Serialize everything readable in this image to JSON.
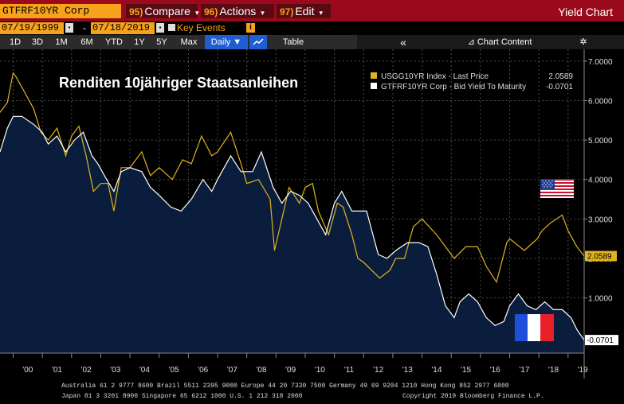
{
  "header": {
    "ticker": "GTFRF10YR Corp",
    "menus": [
      {
        "num": "95)",
        "label": "Compare",
        "caret": "▾"
      },
      {
        "num": "96)",
        "label": "Actions",
        "caret": "▾"
      },
      {
        "num": "97)",
        "label": "Edit",
        "caret": "▾"
      }
    ],
    "app_title": "Yield Chart"
  },
  "dates": {
    "start": "07/19/1999",
    "separator": "-",
    "end": "07/18/2019",
    "key_events_label": "Key Events",
    "info_glyph": "i"
  },
  "toolbar": {
    "periods": [
      "1D",
      "3D",
      "1M",
      "6M",
      "YTD",
      "1Y",
      "5Y",
      "Max"
    ],
    "frequency": "Daily ▼",
    "table_label": "Table",
    "collapse_glyph": "«",
    "chart_content_label": "Chart Content",
    "settings_glyph": "✲",
    "colors": {
      "active": "#1f5ed2"
    }
  },
  "chart_data": {
    "type": "line",
    "title": "Renditen 10jähriger Staatsanleihen",
    "legend_placement": "top-right",
    "xlabel": "",
    "ylabel": "",
    "x_ticks": [
      "'00",
      "'01",
      "'02",
      "'03",
      "'04",
      "'05",
      "'06",
      "'07",
      "'08",
      "'09",
      "'10",
      "'11",
      "'12",
      "'13",
      "'14",
      "'15",
      "'16",
      "'17",
      "'18",
      "'19"
    ],
    "y_ticks": [
      "7.0000",
      "6.0000",
      "5.0000",
      "4.0000",
      "3.0000",
      "2.0000",
      "1.0000"
    ],
    "ylim": [
      -0.4,
      7.3
    ],
    "xlim": [
      1999.55,
      2019.55
    ],
    "grid": true,
    "series": [
      {
        "name": "USGG10YR Index - Last Price",
        "last_value": "2.0589",
        "color": "#e0b41e",
        "x": [
          1999.55,
          1999.8,
          2000.0,
          2000.1,
          2000.4,
          2000.7,
          2000.95,
          2001.2,
          2001.5,
          2001.8,
          2002.0,
          2002.25,
          2002.5,
          2002.75,
          2003.0,
          2003.25,
          2003.45,
          2003.7,
          2004.0,
          2004.4,
          2004.7,
          2005.0,
          2005.45,
          2005.8,
          2006.1,
          2006.45,
          2006.8,
          2007.0,
          2007.45,
          2007.8,
          2008.0,
          2008.4,
          2008.8,
          2008.95,
          2009.2,
          2009.45,
          2009.8,
          2010.0,
          2010.25,
          2010.45,
          2010.8,
          2011.1,
          2011.3,
          2011.6,
          2011.8,
          2012.0,
          2012.55,
          2012.9,
          2013.1,
          2013.4,
          2013.7,
          2014.0,
          2014.5,
          2014.8,
          2015.1,
          2015.5,
          2015.9,
          2016.2,
          2016.55,
          2016.9,
          2017.0,
          2017.5,
          2017.95,
          2018.1,
          2018.4,
          2018.8,
          2019.0,
          2019.3,
          2019.55
        ],
        "y": [
          5.7,
          5.95,
          6.7,
          6.6,
          6.2,
          5.8,
          5.2,
          5.0,
          5.3,
          4.6,
          5.1,
          5.35,
          4.6,
          3.7,
          3.9,
          3.9,
          3.2,
          4.3,
          4.3,
          4.7,
          4.1,
          4.3,
          4.0,
          4.5,
          4.4,
          5.1,
          4.6,
          4.7,
          5.2,
          4.4,
          3.9,
          4.0,
          3.5,
          2.2,
          3.0,
          3.8,
          3.4,
          3.8,
          3.9,
          3.2,
          2.6,
          3.4,
          3.3,
          2.6,
          2.0,
          1.9,
          1.5,
          1.7,
          2.0,
          2.0,
          2.8,
          3.0,
          2.6,
          2.3,
          2.0,
          2.3,
          2.3,
          1.8,
          1.4,
          2.4,
          2.5,
          2.2,
          2.5,
          2.7,
          2.9,
          3.1,
          2.7,
          2.3,
          2.06
        ]
      },
      {
        "name": "GTFRF10YR Corp - Bid Yield To Maturity",
        "last_value": "-0.0701",
        "color": "#ffffff",
        "x": [
          1999.55,
          1999.8,
          2000.0,
          2000.3,
          2000.7,
          2001.0,
          2001.2,
          2001.5,
          2001.8,
          2002.1,
          2002.4,
          2002.7,
          2002.9,
          2003.2,
          2003.45,
          2003.7,
          2004.0,
          2004.4,
          2004.7,
          2005.0,
          2005.4,
          2005.75,
          2006.1,
          2006.5,
          2006.8,
          2007.0,
          2007.45,
          2007.8,
          2008.2,
          2008.5,
          2008.9,
          2009.2,
          2009.5,
          2009.8,
          2010.1,
          2010.4,
          2010.7,
          2011.0,
          2011.25,
          2011.6,
          2011.9,
          2012.1,
          2012.5,
          2012.8,
          2013.1,
          2013.5,
          2013.9,
          2014.2,
          2014.5,
          2014.8,
          2015.1,
          2015.3,
          2015.6,
          2015.9,
          2016.2,
          2016.5,
          2016.8,
          2017.0,
          2017.3,
          2017.6,
          2017.9,
          2018.2,
          2018.5,
          2018.8,
          2019.1,
          2019.3,
          2019.55
        ],
        "y": [
          4.7,
          5.3,
          5.6,
          5.6,
          5.4,
          5.2,
          4.9,
          5.1,
          4.7,
          5.0,
          5.2,
          4.6,
          4.4,
          4.0,
          3.7,
          4.2,
          4.3,
          4.2,
          3.8,
          3.6,
          3.3,
          3.2,
          3.5,
          4.0,
          3.7,
          4.0,
          4.6,
          4.2,
          4.2,
          4.7,
          3.8,
          3.4,
          3.7,
          3.6,
          3.4,
          3.0,
          2.6,
          3.4,
          3.7,
          3.2,
          3.2,
          3.2,
          2.1,
          2.0,
          2.2,
          2.4,
          2.4,
          2.3,
          1.6,
          0.8,
          0.5,
          0.9,
          1.1,
          0.9,
          0.5,
          0.3,
          0.4,
          0.8,
          1.1,
          0.8,
          0.7,
          0.9,
          0.7,
          0.7,
          0.5,
          0.2,
          -0.07
        ]
      }
    ],
    "colors": {
      "area_fill": "#0b1d3d",
      "panel_bg": "#000000",
      "grid": "#4a4a4a"
    }
  },
  "footer": {
    "line1": "Australia 61 2 9777 8600 Brazil 5511 2395 9000 Europe 44 20 7330 7500 Germany 49 69 9204 1210 Hong Kong 852 2977 6000",
    "line2_left": "Japan 81 3 3201 8900          Singapore 65 6212 1000          U.S. 1 212 318 2000",
    "line2_right": "Copyright 2019 Bloomberg Finance L.P."
  }
}
